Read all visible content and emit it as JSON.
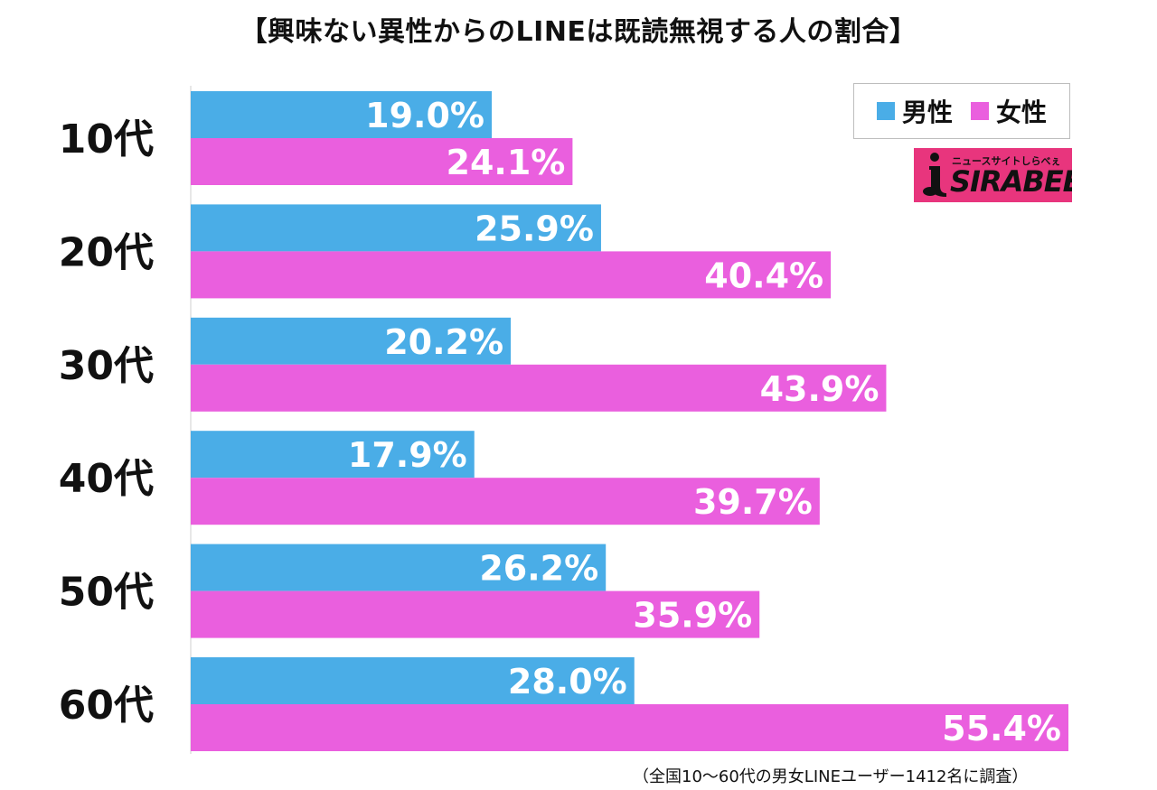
{
  "chart_data": {
    "type": "bar",
    "orientation": "horizontal",
    "title": "【興味ない異性からのLINEは既読無視する人の割合】",
    "categories": [
      "10代",
      "20代",
      "30代",
      "40代",
      "50代",
      "60代"
    ],
    "series": [
      {
        "name": "男性",
        "color": "#4aade7",
        "values": [
          19.0,
          25.9,
          20.2,
          17.9,
          26.2,
          28.0
        ]
      },
      {
        "name": "女性",
        "color": "#ea5fde",
        "values": [
          24.1,
          40.4,
          43.9,
          39.7,
          35.9,
          55.4
        ]
      }
    ],
    "value_suffix": "%",
    "xlim": [
      0,
      55.4
    ],
    "grid": false,
    "legend_position": "top-right"
  },
  "logo": {
    "tagline": "ニュースサイトしらべぇ",
    "text": "SIRABEE",
    "color": "#e8357d"
  },
  "footnote": "（全国10〜60代の男女LINEユーザー1412名に調査）"
}
